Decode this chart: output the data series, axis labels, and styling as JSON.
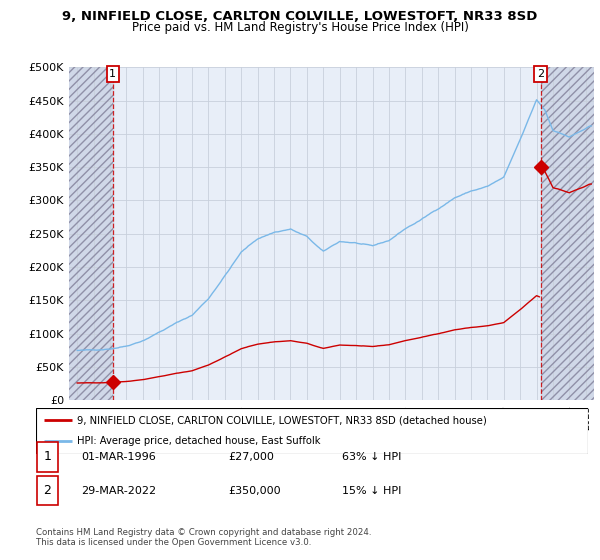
{
  "title1": "9, NINFIELD CLOSE, CARLTON COLVILLE, LOWESTOFT, NR33 8SD",
  "title2": "Price paid vs. HM Land Registry's House Price Index (HPI)",
  "ylabel_ticks": [
    "£0",
    "£50K",
    "£100K",
    "£150K",
    "£200K",
    "£250K",
    "£300K",
    "£350K",
    "£400K",
    "£450K",
    "£500K"
  ],
  "ytick_values": [
    0,
    50000,
    100000,
    150000,
    200000,
    250000,
    300000,
    350000,
    400000,
    450000,
    500000
  ],
  "ylim": [
    0,
    500000
  ],
  "xlim_start": 1993.5,
  "xlim_end": 2025.5,
  "hpi_color": "#7ab8e8",
  "price_color": "#cc0000",
  "purchase1_year": 1996.17,
  "purchase1_price": 27000,
  "purchase2_year": 2022.24,
  "purchase2_price": 350000,
  "legend_label1": "9, NINFIELD CLOSE, CARLTON COLVILLE, LOWESTOFT, NR33 8SD (detached house)",
  "legend_label2": "HPI: Average price, detached house, East Suffolk",
  "table_row1": [
    "1",
    "01-MAR-1996",
    "£27,000",
    "63% ↓ HPI"
  ],
  "table_row2": [
    "2",
    "29-MAR-2022",
    "£350,000",
    "15% ↓ HPI"
  ],
  "footnote": "Contains HM Land Registry data © Crown copyright and database right 2024.\nThis data is licensed under the Open Government Licence v3.0.",
  "plot_bg": "#e8eef8",
  "grid_color": "#c8d0dc",
  "hatch_region_left_end": 1996.17,
  "hatch_region_right_start": 2022.24
}
